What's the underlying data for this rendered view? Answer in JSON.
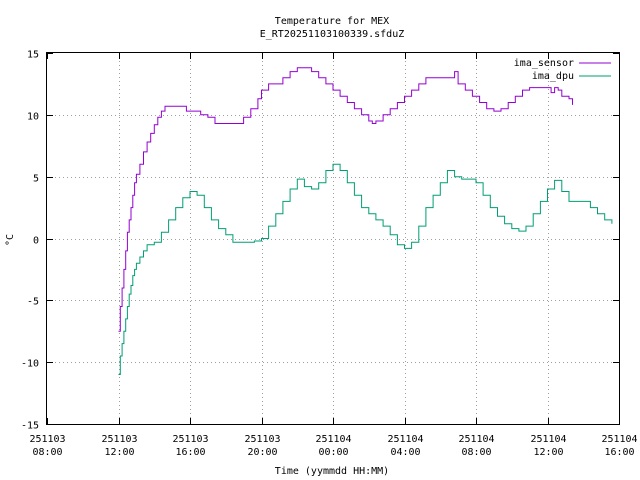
{
  "chart_data": {
    "type": "line",
    "title": "Temperature for MEX",
    "subtitle": "E_RT20251103100339.sfduZ",
    "xlabel": "Time (yymmdd HH:MM)",
    "ylabel": "°C",
    "grid": true,
    "legend_position": "top-right",
    "xlim": [
      8,
      40
    ],
    "ylim": [
      -15,
      15
    ],
    "yticks": [
      {
        "value": -15,
        "label": "-15"
      },
      {
        "value": -10,
        "label": "-10"
      },
      {
        "value": -5,
        "label": "-5"
      },
      {
        "value": 0,
        "label": "0"
      },
      {
        "value": 5,
        "label": "5"
      },
      {
        "value": 10,
        "label": "10"
      },
      {
        "value": 15,
        "label": "15"
      }
    ],
    "xticks": [
      {
        "value": 8,
        "date": "251103",
        "time": "08:00"
      },
      {
        "value": 12,
        "date": "251103",
        "time": "12:00"
      },
      {
        "value": 16,
        "date": "251103",
        "time": "16:00"
      },
      {
        "value": 20,
        "date": "251103",
        "time": "20:00"
      },
      {
        "value": 24,
        "date": "251104",
        "time": "00:00"
      },
      {
        "value": 28,
        "date": "251104",
        "time": "04:00"
      },
      {
        "value": 32,
        "date": "251104",
        "time": "08:00"
      },
      {
        "value": 36,
        "date": "251104",
        "time": "12:00"
      },
      {
        "value": 40,
        "date": "251104",
        "time": "16:00"
      }
    ],
    "series": [
      {
        "name": "ima_sensor",
        "color": "#9400d3",
        "points": [
          [
            12.0,
            -7.5
          ],
          [
            12.1,
            -5.5
          ],
          [
            12.2,
            -4
          ],
          [
            12.3,
            -2.5
          ],
          [
            12.4,
            -1
          ],
          [
            12.5,
            0.5
          ],
          [
            12.6,
            1.5
          ],
          [
            12.7,
            2.5
          ],
          [
            12.8,
            3.5
          ],
          [
            12.9,
            4.5
          ],
          [
            13.0,
            5.2
          ],
          [
            13.2,
            6
          ],
          [
            13.4,
            7
          ],
          [
            13.6,
            7.8
          ],
          [
            13.8,
            8.5
          ],
          [
            14.0,
            9.2
          ],
          [
            14.2,
            9.8
          ],
          [
            14.4,
            10.3
          ],
          [
            14.6,
            10.7
          ],
          [
            15.0,
            10.7
          ],
          [
            15.6,
            10.7
          ],
          [
            15.8,
            10.3
          ],
          [
            16.2,
            10.3
          ],
          [
            16.6,
            10.0
          ],
          [
            17.0,
            9.8
          ],
          [
            17.4,
            9.3
          ],
          [
            18.0,
            9.3
          ],
          [
            18.6,
            9.3
          ],
          [
            19.0,
            9.8
          ],
          [
            19.4,
            10.5
          ],
          [
            19.8,
            11.3
          ],
          [
            20.0,
            12.0
          ],
          [
            20.4,
            12.5
          ],
          [
            20.8,
            12.5
          ],
          [
            21.2,
            13.0
          ],
          [
            21.6,
            13.5
          ],
          [
            22.0,
            13.8
          ],
          [
            22.4,
            13.8
          ],
          [
            22.8,
            13.5
          ],
          [
            23.2,
            13.0
          ],
          [
            23.6,
            12.5
          ],
          [
            24.0,
            12.0
          ],
          [
            24.4,
            11.5
          ],
          [
            24.8,
            11.0
          ],
          [
            25.2,
            10.5
          ],
          [
            25.6,
            10.0
          ],
          [
            26.0,
            9.5
          ],
          [
            26.2,
            9.3
          ],
          [
            26.4,
            9.5
          ],
          [
            26.8,
            10.0
          ],
          [
            27.2,
            10.5
          ],
          [
            27.6,
            11.0
          ],
          [
            28.0,
            11.5
          ],
          [
            28.4,
            12.0
          ],
          [
            28.8,
            12.5
          ],
          [
            29.2,
            13.0
          ],
          [
            30.4,
            13.0
          ],
          [
            30.8,
            13.5
          ],
          [
            31.0,
            12.5
          ],
          [
            31.4,
            12.0
          ],
          [
            31.8,
            11.5
          ],
          [
            32.2,
            11.0
          ],
          [
            32.6,
            10.5
          ],
          [
            33.0,
            10.3
          ],
          [
            33.4,
            10.5
          ],
          [
            33.8,
            11.0
          ],
          [
            34.2,
            11.5
          ],
          [
            34.6,
            12.0
          ],
          [
            35.0,
            12.2
          ],
          [
            35.4,
            12.2
          ],
          [
            35.8,
            12.2
          ],
          [
            36.2,
            11.8
          ],
          [
            36.4,
            12.2
          ],
          [
            36.6,
            12.0
          ],
          [
            36.8,
            11.5
          ],
          [
            37.0,
            11.5
          ],
          [
            37.2,
            11.3
          ],
          [
            37.4,
            10.8
          ]
        ]
      },
      {
        "name": "ima_dpu",
        "color": "#009e73",
        "points": [
          [
            12.0,
            -11.0
          ],
          [
            12.1,
            -9.5
          ],
          [
            12.2,
            -8.5
          ],
          [
            12.3,
            -7.5
          ],
          [
            12.4,
            -6.5
          ],
          [
            12.5,
            -5.5
          ],
          [
            12.6,
            -4.5
          ],
          [
            12.7,
            -3.8
          ],
          [
            12.8,
            -3.0
          ],
          [
            12.9,
            -2.5
          ],
          [
            13.0,
            -2.0
          ],
          [
            13.2,
            -1.5
          ],
          [
            13.4,
            -1.0
          ],
          [
            13.6,
            -0.5
          ],
          [
            14.0,
            -0.3
          ],
          [
            14.4,
            0.5
          ],
          [
            14.8,
            1.5
          ],
          [
            15.2,
            2.5
          ],
          [
            15.6,
            3.3
          ],
          [
            16.0,
            3.8
          ],
          [
            16.4,
            3.5
          ],
          [
            16.8,
            2.5
          ],
          [
            17.2,
            1.5
          ],
          [
            17.6,
            0.8
          ],
          [
            18.0,
            0.3
          ],
          [
            18.4,
            -0.3
          ],
          [
            19.2,
            -0.3
          ],
          [
            19.6,
            -0.2
          ],
          [
            20.0,
            0.0
          ],
          [
            20.4,
            1.0
          ],
          [
            20.8,
            2.0
          ],
          [
            21.2,
            3.0
          ],
          [
            21.6,
            4.0
          ],
          [
            22.0,
            4.8
          ],
          [
            22.4,
            4.2
          ],
          [
            22.8,
            4.0
          ],
          [
            23.2,
            4.5
          ],
          [
            23.6,
            5.5
          ],
          [
            24.0,
            6.0
          ],
          [
            24.4,
            5.5
          ],
          [
            24.8,
            4.5
          ],
          [
            25.2,
            3.5
          ],
          [
            25.6,
            2.5
          ],
          [
            26.0,
            2.0
          ],
          [
            26.4,
            1.5
          ],
          [
            26.8,
            1.0
          ],
          [
            27.2,
            0.3
          ],
          [
            27.6,
            -0.5
          ],
          [
            28.0,
            -0.8
          ],
          [
            28.4,
            -0.3
          ],
          [
            28.8,
            1.0
          ],
          [
            29.2,
            2.5
          ],
          [
            29.6,
            3.5
          ],
          [
            30.0,
            4.5
          ],
          [
            30.4,
            5.5
          ],
          [
            30.8,
            5.0
          ],
          [
            31.2,
            4.8
          ],
          [
            31.6,
            4.8
          ],
          [
            32.0,
            4.5
          ],
          [
            32.4,
            3.5
          ],
          [
            32.8,
            2.5
          ],
          [
            33.2,
            1.8
          ],
          [
            33.6,
            1.2
          ],
          [
            34.0,
            0.8
          ],
          [
            34.4,
            0.6
          ],
          [
            34.8,
            1.0
          ],
          [
            35.2,
            2.0
          ],
          [
            35.6,
            3.0
          ],
          [
            36.0,
            4.0
          ],
          [
            36.4,
            4.7
          ],
          [
            36.8,
            3.8
          ],
          [
            37.2,
            3.0
          ],
          [
            37.6,
            3.0
          ],
          [
            38.0,
            3.0
          ],
          [
            38.4,
            2.5
          ],
          [
            38.8,
            2.0
          ],
          [
            39.2,
            1.5
          ],
          [
            39.6,
            1.2
          ]
        ]
      }
    ]
  }
}
